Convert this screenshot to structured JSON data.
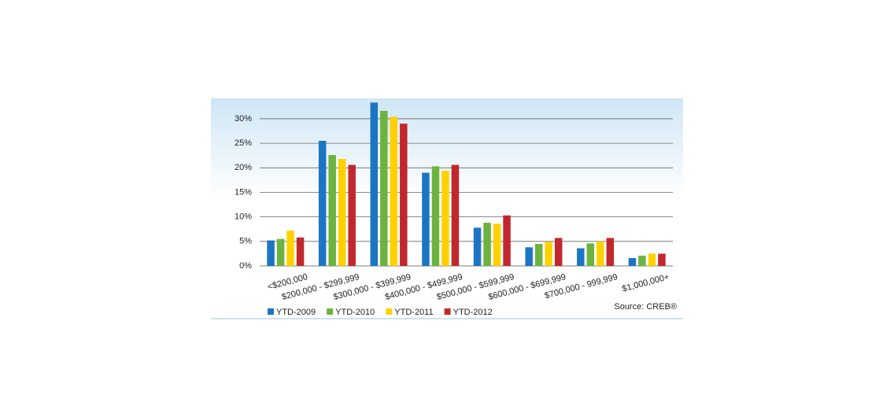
{
  "chart_data": {
    "type": "bar",
    "categories": [
      "<$200,000",
      "$200,000 - $299,999",
      "$300,000 - $399,999",
      "$400,000 - $499,999",
      "$500,000 - $599,999",
      "$600,000 - $699,999",
      "$700,000 - 999,999",
      "$1,000,000+"
    ],
    "series": [
      {
        "name": "YTD-2009",
        "color": "#1b75c2",
        "values": [
          5.2,
          25.5,
          33.3,
          19.0,
          7.8,
          3.8,
          3.6,
          1.6
        ]
      },
      {
        "name": "YTD-2010",
        "color": "#6cb33f",
        "values": [
          5.5,
          22.6,
          31.6,
          20.3,
          8.8,
          4.5,
          4.6,
          2.1
        ]
      },
      {
        "name": "YTD-2011",
        "color": "#ffd100",
        "values": [
          7.2,
          21.8,
          30.4,
          19.4,
          8.6,
          4.9,
          5.0,
          2.5
        ]
      },
      {
        "name": "YTD-2012",
        "color": "#c1272d",
        "values": [
          5.8,
          20.6,
          29.0,
          20.6,
          10.3,
          5.7,
          5.7,
          2.5
        ]
      }
    ],
    "ylim": [
      0,
      34
    ],
    "yticks": [
      {
        "value": 0,
        "label": "0%"
      },
      {
        "value": 5,
        "label": "5%"
      },
      {
        "value": 10,
        "label": "10%"
      },
      {
        "value": 15,
        "label": "15%"
      },
      {
        "value": 20,
        "label": "20%"
      },
      {
        "value": 25,
        "label": "25%"
      },
      {
        "value": 30,
        "label": "30%"
      }
    ],
    "grid": true,
    "legend": "bottom",
    "source": "Source: CREB®"
  }
}
